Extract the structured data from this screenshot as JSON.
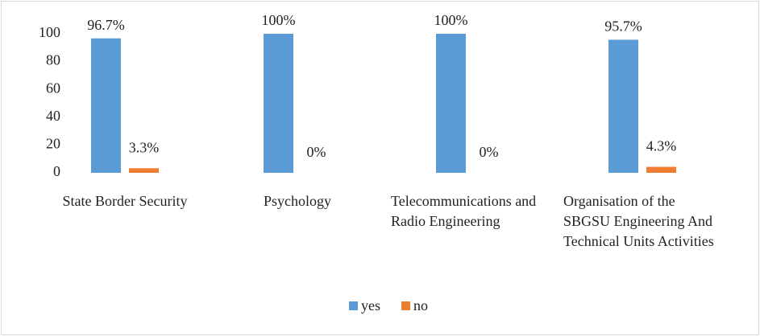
{
  "chart_data": {
    "type": "bar",
    "categories": [
      "State Border Security",
      "Psychology",
      "Telecommunications and Radio Engineering",
      "Organisation of the SBGSU Engineering And Technical Units Activities"
    ],
    "series": [
      {
        "name": "yes",
        "color": "#5b9bd5",
        "values": [
          96.7,
          100,
          100,
          95.7
        ],
        "value_labels": [
          "96.7%",
          "100%",
          "100%",
          "95.7%"
        ]
      },
      {
        "name": "no",
        "color": "#ed7d31",
        "values": [
          3.3,
          0,
          0,
          4.3
        ],
        "value_labels": [
          "3.3%",
          "0%",
          "0%",
          "4.3%"
        ]
      }
    ],
    "ylim": [
      0,
      100
    ],
    "yticks": [
      0,
      20,
      40,
      60,
      80,
      100
    ],
    "grid": false,
    "legend": "bottom"
  }
}
